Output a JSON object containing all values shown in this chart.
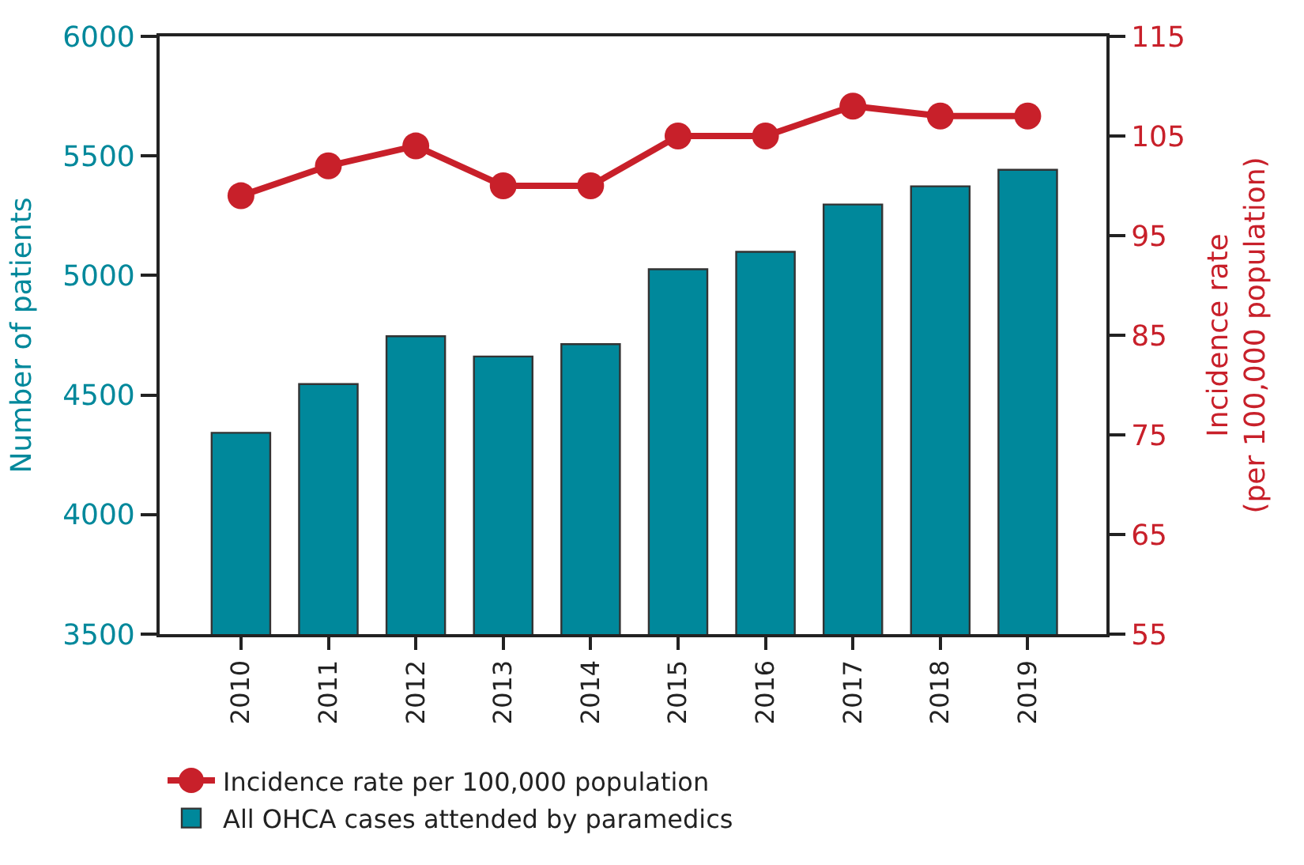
{
  "chart_data": {
    "type": "bar",
    "categories": [
      "2010",
      "2011",
      "2012",
      "2013",
      "2014",
      "2015",
      "2016",
      "2017",
      "2018",
      "2019"
    ],
    "ylabel": "Number of patients",
    "y2label": "Incidence rate\n(per 100,000 population)",
    "ylim": [
      3500,
      6000
    ],
    "yticks": [
      3500,
      4000,
      4500,
      5000,
      5500,
      6000
    ],
    "y2lim": [
      55,
      115
    ],
    "y2ticks": [
      55,
      65,
      75,
      85,
      95,
      105,
      115
    ],
    "legend": "bottom",
    "marker": "circle",
    "series": [
      {
        "name": "Incidence rate per 100,000 population",
        "type": "line",
        "axis": "y2",
        "color": "#c8202a",
        "values": [
          99,
          102,
          104,
          100,
          100,
          105,
          105,
          108,
          107,
          107
        ]
      },
      {
        "name": "All OHCA cases attended by paramedics",
        "color": "#00889b",
        "values": [
          4342,
          4546,
          4746,
          4661,
          4713,
          5026,
          5099,
          5297,
          5373,
          5442
        ]
      }
    ]
  }
}
